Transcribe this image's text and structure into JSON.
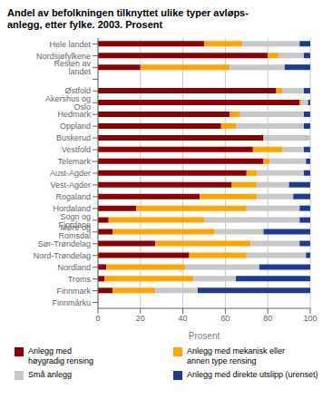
{
  "chart_data": {
    "type": "bar",
    "orientation": "horizontal",
    "stacked": true,
    "title": "Andel av befolkningen tilknyttet ulike typer avløps-\nanlegg, etter fylke. 2003. Prosent",
    "categories": [
      "Hele landet",
      "Nordsjøfylkene",
      "Resten av landet",
      null,
      "Østfold",
      "Akershus og Oslo",
      "Hedmark",
      "Oppland",
      "Buskerud",
      "Vestfold",
      "Telemark",
      "Aust-Agder",
      "Vest-Agder",
      "Rogaland",
      "Hordaland",
      "Sogn og Fjordane",
      "Møre og Romsdal",
      "Sør-Trøndelag",
      "Nord-Trøndelag",
      "Nordland",
      "Troms",
      "Finnmark",
      "Finnmárku"
    ],
    "series": [
      {
        "name": "Anlegg med\nhøygradig rensing",
        "color": "#8B0000",
        "values": [
          50,
          80,
          20,
          0,
          84,
          95,
          62,
          58,
          78,
          73,
          78,
          70,
          63,
          48,
          18,
          5,
          7,
          27,
          43,
          4,
          3,
          7,
          0
        ]
      },
      {
        "name": "Anlegg med mekanisk eller\nannen type rensing",
        "color": "#FFA500",
        "values": [
          18,
          5,
          42,
          0,
          3,
          1,
          5,
          7,
          0,
          14,
          3,
          5,
          12,
          27,
          52,
          45,
          48,
          45,
          27,
          37,
          42,
          20,
          0
        ]
      },
      {
        "name": "Små anlegg",
        "color": "#C8C8C8",
        "values": [
          27,
          12,
          26,
          0,
          10,
          3,
          30,
          32,
          22,
          10,
          17,
          22,
          15,
          17,
          25,
          45,
          23,
          23,
          28,
          35,
          20,
          20,
          0
        ]
      },
      {
        "name": "Anlegg med direkte utslipp (urenset)",
        "color": "#1F3A93",
        "values": [
          5,
          3,
          12,
          0,
          3,
          1,
          3,
          3,
          0,
          3,
          2,
          3,
          10,
          8,
          5,
          5,
          22,
          5,
          2,
          24,
          35,
          53,
          0
        ]
      }
    ],
    "xlabel": "Prosent",
    "xlim": [
      0,
      100
    ],
    "xticks": [
      0,
      20,
      40,
      60,
      80,
      100
    ],
    "grid": true,
    "legend": "bottom"
  }
}
